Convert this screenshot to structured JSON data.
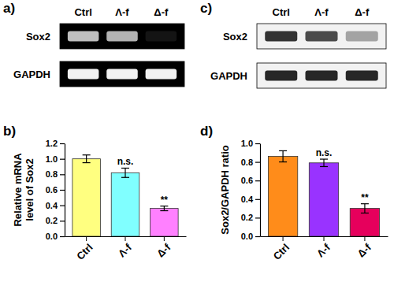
{
  "chart_data": [
    {
      "type": "bar",
      "panel": "b)",
      "categories": [
        "Ctrl",
        "Λ-f",
        "Δ-f"
      ],
      "values": [
        1.0,
        0.82,
        0.36
      ],
      "errors": [
        0.05,
        0.06,
        0.03
      ],
      "significance": [
        null,
        "n.s.",
        "**"
      ],
      "colors": [
        "#ffff80",
        "#80ffff",
        "#ff80ff"
      ],
      "y_label": [
        "Relative mRNA",
        "level of Sox2"
      ],
      "ylim": [
        0,
        1.2
      ],
      "yticks": [
        {
          "value": 0,
          "label": "0.0"
        },
        0.2,
        0.4,
        0.6,
        0.8,
        {
          "value": 1,
          "label": "1.0"
        },
        {
          "value": 1.2,
          "label": "1.2"
        }
      ]
    },
    {
      "type": "bar",
      "panel": "d)",
      "categories": [
        "Ctrl",
        "Λ-f",
        "Δ-f"
      ],
      "values": [
        0.86,
        0.79,
        0.3
      ],
      "errors": [
        0.06,
        0.04,
        0.05
      ],
      "significance": [
        null,
        "n.s.",
        "**"
      ],
      "colors": [
        "#ff8c1a",
        "#9933ff",
        "#e6005c"
      ],
      "y_label": [
        "Sox2/GAPDH ratio"
      ],
      "ylim": [
        0,
        1.0
      ],
      "yticks": [
        {
          "value": 0,
          "label": "0.0"
        },
        0.2,
        0.4,
        0.6,
        0.8,
        {
          "value": 1,
          "label": "1.0"
        }
      ]
    }
  ],
  "gels": [
    {
      "panel": "a)",
      "lanes": [
        "Ctrl",
        "Λ-f",
        "Δ-f"
      ],
      "rows": [
        "Sox2",
        "GAPDH"
      ],
      "intensity": [
        [
          0.75,
          0.7,
          0.08
        ],
        [
          0.95,
          0.95,
          0.95
        ]
      ],
      "color": "#000000",
      "band_color": "#ffffff"
    },
    {
      "panel": "c)",
      "lanes": [
        "Ctrl",
        "Λ-f",
        "Δ-f"
      ],
      "rows": [
        "Sox2",
        "GAPDH"
      ],
      "intensity": [
        [
          0.85,
          0.75,
          0.35
        ],
        [
          0.9,
          0.9,
          0.9
        ]
      ],
      "color": "#f2f2f2",
      "band_color": "#111111"
    }
  ]
}
